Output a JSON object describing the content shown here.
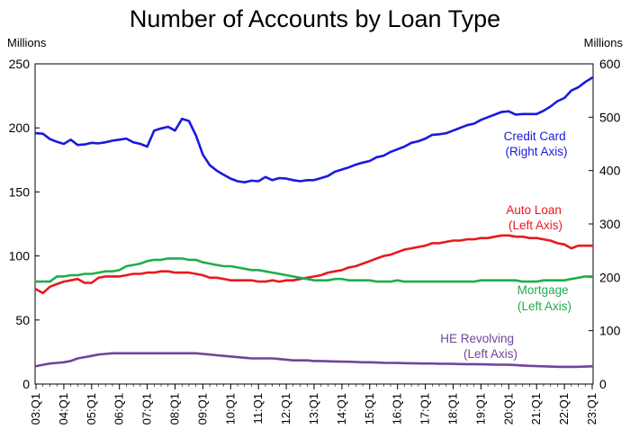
{
  "chart_data": {
    "type": "line",
    "title": "Number of Accounts by Loan Type",
    "left_axis": {
      "unit_label": "Millions",
      "range": [
        0,
        250
      ],
      "ticks": [
        "0",
        "50",
        "100",
        "150",
        "200",
        "250"
      ]
    },
    "right_axis": {
      "unit_label": "Millions",
      "range": [
        0,
        600
      ],
      "ticks": [
        "0",
        "100",
        "200",
        "300",
        "400",
        "500",
        "600"
      ]
    },
    "x_tick_labels": [
      "03:Q1",
      "04:Q1",
      "05:Q1",
      "06:Q1",
      "07:Q1",
      "08:Q1",
      "09:Q1",
      "10:Q1",
      "11:Q1",
      "12:Q1",
      "13:Q1",
      "14:Q1",
      "15:Q1",
      "16:Q1",
      "17:Q1",
      "18:Q1",
      "19:Q1",
      "20:Q1",
      "21:Q1",
      "22:Q1",
      "23:Q1"
    ],
    "grid": false,
    "series": [
      {
        "annotation": [
          "Credit Card",
          "(Right Axis)"
        ],
        "axis": "right",
        "color": "#1a1adc",
        "values": [
          470,
          469,
          459,
          454,
          450,
          458,
          448,
          449,
          452,
          451,
          453,
          456,
          458,
          460,
          453,
          450,
          445,
          475,
          479,
          482,
          475,
          497,
          493,
          466,
          430,
          410,
          400,
          392,
          385,
          380,
          378,
          381,
          380,
          388,
          382,
          386,
          385,
          382,
          380,
          382,
          382,
          386,
          390,
          398,
          402,
          406,
          411,
          415,
          418,
          425,
          428,
          435,
          440,
          445,
          452,
          455,
          460,
          467,
          468,
          470,
          475,
          480,
          485,
          488,
          495,
          500,
          505,
          510,
          511,
          505,
          506,
          506,
          506,
          512,
          520,
          530,
          536,
          550,
          556,
          566,
          574
        ]
      },
      {
        "annotation": [
          "Auto Loan",
          "(Left Axis)"
        ],
        "axis": "left",
        "color": "#e8191c",
        "values": [
          74,
          71,
          76,
          78,
          80,
          81,
          82,
          79,
          79,
          83,
          84,
          84,
          84,
          85,
          86,
          86,
          87,
          87,
          88,
          88,
          87,
          87,
          87,
          86,
          85,
          83,
          83,
          82,
          81,
          81,
          81,
          81,
          80,
          80,
          81,
          80,
          81,
          81,
          82,
          83,
          84,
          85,
          87,
          88,
          89,
          91,
          92,
          94,
          96,
          98,
          100,
          101,
          103,
          105,
          106,
          107,
          108,
          110,
          110,
          111,
          112,
          112,
          113,
          113,
          114,
          114,
          115,
          116,
          116,
          115,
          115,
          114,
          114,
          113,
          112,
          110,
          109,
          106,
          108,
          108,
          108
        ]
      },
      {
        "annotation": [
          "Mortgage",
          "(Left Axis)"
        ],
        "axis": "left",
        "color": "#1fad4d",
        "values": [
          80,
          80,
          80,
          84,
          84,
          85,
          85,
          86,
          86,
          87,
          88,
          88,
          89,
          92,
          93,
          94,
          96,
          97,
          97,
          98,
          98,
          98,
          97,
          97,
          95,
          94,
          93,
          92,
          92,
          91,
          90,
          89,
          89,
          88,
          87,
          86,
          85,
          84,
          83,
          82,
          81,
          81,
          81,
          82,
          82,
          81,
          81,
          81,
          81,
          80,
          80,
          80,
          81,
          80,
          80,
          80,
          80,
          80,
          80,
          80,
          80,
          80,
          80,
          80,
          81,
          81,
          81,
          81,
          81,
          81,
          80,
          80,
          80,
          81,
          81,
          81,
          81,
          82,
          83,
          84,
          84
        ]
      },
      {
        "annotation": [
          "HE Revolving",
          "(Left Axis)"
        ],
        "axis": "left",
        "color": "#70449c",
        "values": [
          14,
          15,
          16,
          16.5,
          17,
          18,
          20,
          21,
          22,
          23,
          23.5,
          24,
          24,
          24,
          24,
          24,
          24,
          24,
          24,
          24,
          24,
          24,
          24,
          24,
          23.5,
          23,
          22.5,
          22,
          21.5,
          21,
          20.5,
          20,
          20,
          20,
          20,
          19.5,
          19,
          18.5,
          18.5,
          18.5,
          18,
          18,
          17.8,
          17.6,
          17.5,
          17.4,
          17.2,
          17,
          17,
          16.8,
          16.6,
          16.5,
          16.4,
          16.3,
          16.2,
          16.1,
          16,
          16,
          15.9,
          15.8,
          15.7,
          15.6,
          15.5,
          15.5,
          15.4,
          15.3,
          15.2,
          15.1,
          15,
          14.8,
          14.5,
          14.2,
          14,
          13.8,
          13.6,
          13.5,
          13.4,
          13.4,
          13.5,
          13.6,
          13.8
        ]
      }
    ]
  }
}
